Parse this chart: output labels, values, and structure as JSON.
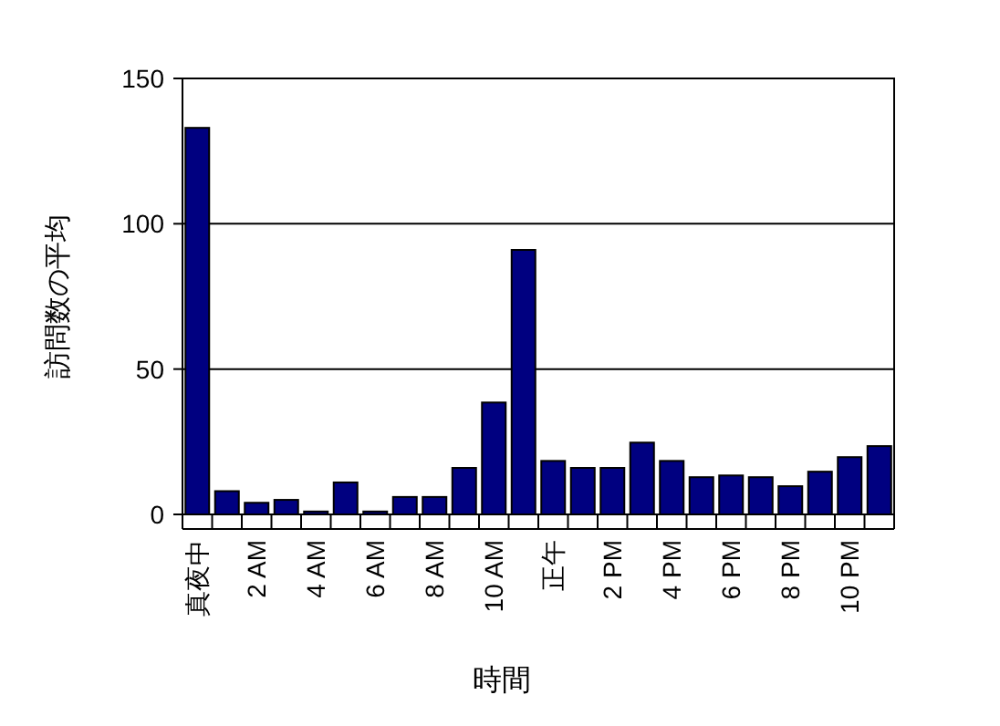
{
  "chart_data": {
    "type": "bar",
    "xlabel": "時間",
    "ylabel": "訪問数の平均",
    "categories": [
      "真夜中",
      null,
      "2 AM",
      null,
      "4 AM",
      null,
      "6 AM",
      null,
      "8 AM",
      null,
      "10 AM",
      null,
      "正午",
      null,
      "2 PM",
      null,
      "4 PM",
      null,
      "6 PM",
      null,
      "8 PM",
      null,
      "10 PM",
      null
    ],
    "values": [
      133,
      8,
      4,
      5,
      1,
      11,
      1,
      6,
      6,
      16,
      38.5,
      91,
      18.4,
      16,
      16,
      24.7,
      18.4,
      12.8,
      13.4,
      12.8,
      9.7,
      14.7,
      19.7,
      23.5
    ],
    "color": "#000080",
    "ylim": [
      0,
      150
    ],
    "yticks": [
      0,
      50,
      100,
      150
    ],
    "grid": "y"
  }
}
